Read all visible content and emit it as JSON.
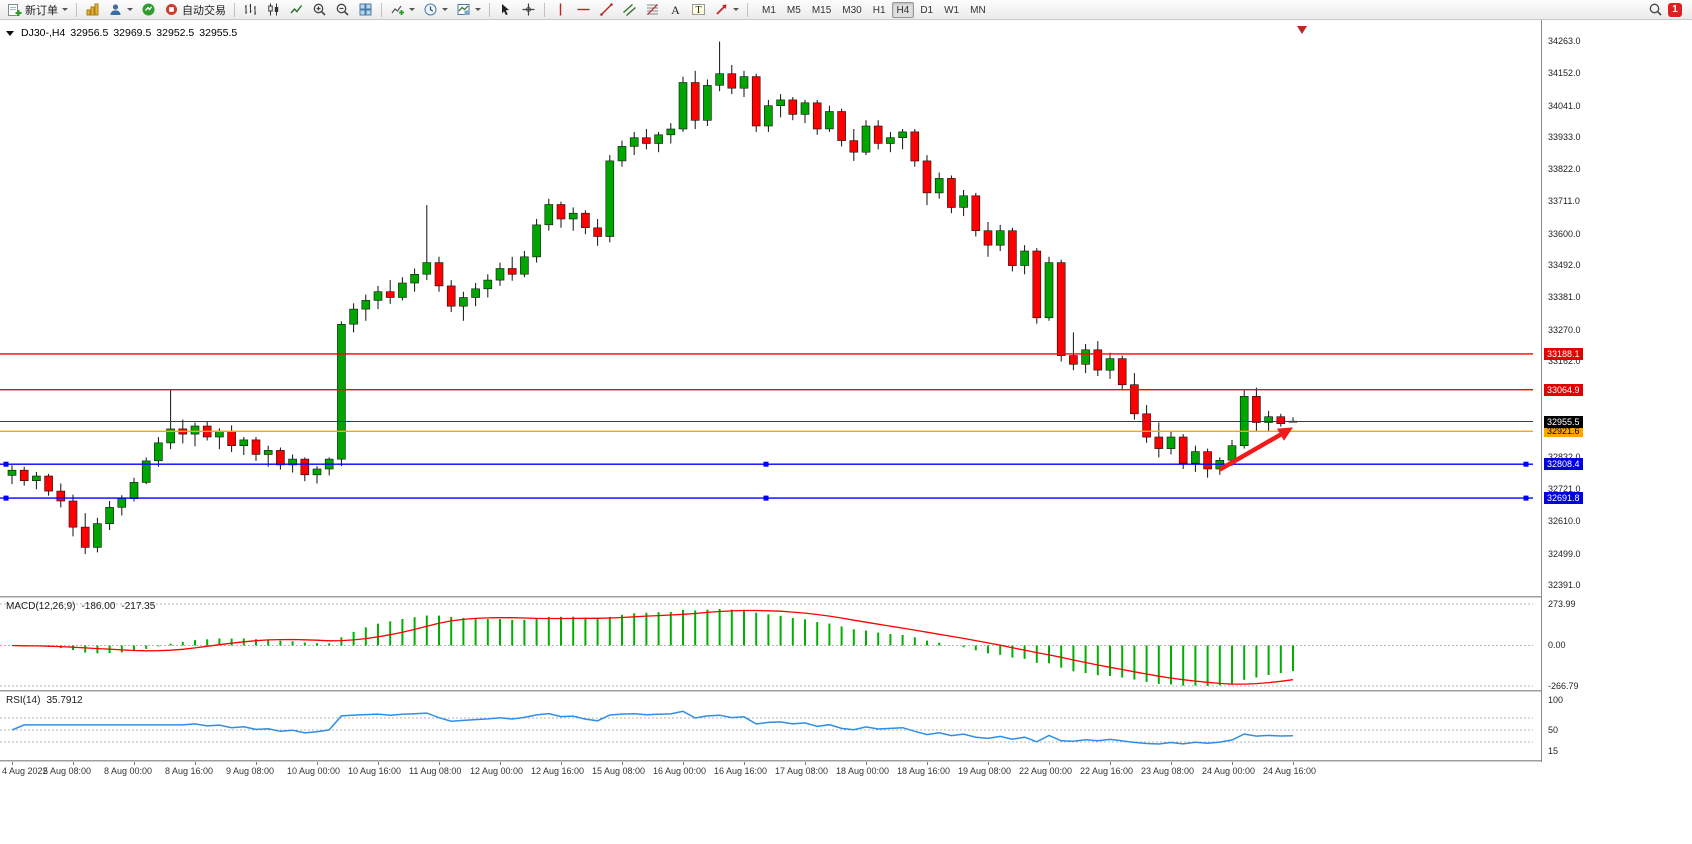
{
  "toolbar": {
    "new_order_label": "新订单",
    "auto_trading_label": "自动交易",
    "timeframes": [
      "M1",
      "M5",
      "M15",
      "M30",
      "H1",
      "H4",
      "D1",
      "W1",
      "MN"
    ],
    "active_timeframe": "H4",
    "notification_count": "1"
  },
  "chart": {
    "symbol_period": "DJ30-,H4",
    "ohlc": {
      "open": "32956.5",
      "high": "32969.5",
      "low": "32952.5",
      "close": "32955.5"
    },
    "price_axis_labels": [
      "34263.0",
      "34152.0",
      "34041.0",
      "33933.0",
      "33822.0",
      "33711.0",
      "33600.0",
      "33492.0",
      "33381.0",
      "33270.0",
      "33162.0",
      "33051.0",
      "32940.0",
      "32832.0",
      "32721.0",
      "32610.0",
      "32499.0",
      "32391.0"
    ],
    "time_axis_labels": [
      "4 Aug 2022",
      "5 Aug 08:00",
      "8 Aug 00:00",
      "8 Aug 16:00",
      "9 Aug 08:00",
      "10 Aug 00:00",
      "10 Aug 16:00",
      "11 Aug 08:00",
      "12 Aug 00:00",
      "12 Aug 16:00",
      "15 Aug 08:00",
      "16 Aug 00:00",
      "16 Aug 16:00",
      "17 Aug 08:00",
      "18 Aug 00:00",
      "18 Aug 16:00",
      "19 Aug 08:00",
      "22 Aug 00:00",
      "22 Aug 16:00",
      "23 Aug 08:00",
      "24 Aug 00:00",
      "24 Aug 16:00"
    ],
    "bid": {
      "value": 32955.5,
      "label": "32955.5",
      "line_color": "#3c3c3c",
      "label_bg": "#000000",
      "label_fg": "#ffffff"
    },
    "levels": [
      {
        "value": 33188.1,
        "label": "33188.1",
        "color": "#FF0000",
        "label_bg": "#E30000",
        "label_fg": "#ffffff",
        "handles": false
      },
      {
        "value": 33064.9,
        "label": "33064.9",
        "color": "#FF0000",
        "label_bg": "#E30000",
        "label_fg": "#ffffff",
        "handles": false
      },
      {
        "value": 32921.6,
        "label": "32921.6",
        "color": "#FFA500",
        "label_bg": "#FFA500",
        "label_fg": "#000000",
        "handles": false
      },
      {
        "value": 32808.4,
        "label": "32808.4",
        "color": "#0000FF",
        "label_bg": "#0000E0",
        "label_fg": "#ffffff",
        "handles": true
      },
      {
        "value": 32691.8,
        "label": "32691.8",
        "color": "#0000FF",
        "label_bg": "#0000E0",
        "label_fg": "#ffffff",
        "handles": true
      }
    ],
    "arrow_annotation": {
      "from_index": 99,
      "from_price": 32790,
      "to_index": 105,
      "to_price": 32935,
      "color": "#F21A1A"
    },
    "colors": {
      "bull": "#00A600",
      "bear": "#FF0000",
      "outline": "#111111",
      "background": "#FFFFFF"
    }
  },
  "chart_data": {
    "type": "candlestick",
    "symbol": "DJ30-",
    "timeframe": "H4",
    "y_range": [
      32355,
      34330
    ],
    "candles_ohlc": [
      [
        32770,
        32805,
        32740,
        32788
      ],
      [
        32788,
        32800,
        32735,
        32752
      ],
      [
        32752,
        32782,
        32722,
        32768
      ],
      [
        32768,
        32775,
        32700,
        32716
      ],
      [
        32716,
        32742,
        32660,
        32682
      ],
      [
        32682,
        32704,
        32560,
        32592
      ],
      [
        32592,
        32640,
        32499,
        32522
      ],
      [
        32522,
        32624,
        32505,
        32604
      ],
      [
        32604,
        32682,
        32582,
        32660
      ],
      [
        32660,
        32702,
        32632,
        32690
      ],
      [
        32690,
        32762,
        32680,
        32746
      ],
      [
        32746,
        32832,
        32740,
        32820
      ],
      [
        32820,
        32902,
        32800,
        32882
      ],
      [
        32882,
        33064,
        32860,
        32930
      ],
      [
        32930,
        32962,
        32880,
        32912
      ],
      [
        32912,
        32952,
        32870,
        32940
      ],
      [
        32940,
        32956,
        32890,
        32902
      ],
      [
        32902,
        32932,
        32860,
        32922
      ],
      [
        32922,
        32942,
        32850,
        32872
      ],
      [
        32872,
        32902,
        32840,
        32892
      ],
      [
        32892,
        32902,
        32820,
        32842
      ],
      [
        32842,
        32872,
        32800,
        32856
      ],
      [
        32856,
        32866,
        32790,
        32806
      ],
      [
        32806,
        32842,
        32780,
        32826
      ],
      [
        32826,
        32832,
        32750,
        32772
      ],
      [
        32772,
        32802,
        32742,
        32792
      ],
      [
        32792,
        32832,
        32770,
        32826
      ],
      [
        32826,
        33300,
        32802,
        33290
      ],
      [
        33290,
        33362,
        33262,
        33342
      ],
      [
        33342,
        33392,
        33302,
        33372
      ],
      [
        33372,
        33422,
        33342,
        33402
      ],
      [
        33402,
        33442,
        33360,
        33382
      ],
      [
        33382,
        33452,
        33372,
        33432
      ],
      [
        33432,
        33482,
        33402,
        33462
      ],
      [
        33462,
        33700,
        33442,
        33502
      ],
      [
        33502,
        33522,
        33402,
        33422
      ],
      [
        33422,
        33442,
        33332,
        33352
      ],
      [
        33352,
        33402,
        33302,
        33382
      ],
      [
        33382,
        33432,
        33352,
        33412
      ],
      [
        33412,
        33462,
        33382,
        33442
      ],
      [
        33442,
        33502,
        33422,
        33482
      ],
      [
        33482,
        33522,
        33440,
        33462
      ],
      [
        33462,
        33542,
        33452,
        33522
      ],
      [
        33522,
        33652,
        33502,
        33632
      ],
      [
        33632,
        33722,
        33612,
        33702
      ],
      [
        33702,
        33712,
        33622,
        33652
      ],
      [
        33652,
        33692,
        33612,
        33672
      ],
      [
        33672,
        33682,
        33600,
        33622
      ],
      [
        33622,
        33652,
        33560,
        33592
      ],
      [
        33592,
        33872,
        33572,
        33852
      ],
      [
        33852,
        33922,
        33832,
        33902
      ],
      [
        33902,
        33952,
        33872,
        33932
      ],
      [
        33932,
        33962,
        33892,
        33912
      ],
      [
        33912,
        33952,
        33882,
        33942
      ],
      [
        33942,
        33982,
        33912,
        33962
      ],
      [
        33962,
        34142,
        33952,
        34122
      ],
      [
        34122,
        34162,
        33962,
        33992
      ],
      [
        33992,
        34132,
        33972,
        34112
      ],
      [
        34112,
        34263,
        34092,
        34152
      ],
      [
        34152,
        34182,
        34082,
        34102
      ],
      [
        34102,
        34162,
        34072,
        34142
      ],
      [
        34142,
        34152,
        33952,
        33972
      ],
      [
        33972,
        34062,
        33952,
        34042
      ],
      [
        34042,
        34082,
        34002,
        34062
      ],
      [
        34062,
        34072,
        33992,
        34012
      ],
      [
        34012,
        34062,
        33982,
        34052
      ],
      [
        34052,
        34062,
        33942,
        33962
      ],
      [
        33962,
        34042,
        33952,
        34022
      ],
      [
        34022,
        34032,
        33902,
        33922
      ],
      [
        33922,
        33962,
        33852,
        33882
      ],
      [
        33882,
        33992,
        33872,
        33972
      ],
      [
        33972,
        33992,
        33892,
        33912
      ],
      [
        33912,
        33952,
        33882,
        33932
      ],
      [
        33932,
        33962,
        33892,
        33952
      ],
      [
        33952,
        33962,
        33832,
        33852
      ],
      [
        33852,
        33872,
        33700,
        33742
      ],
      [
        33742,
        33812,
        33722,
        33792
      ],
      [
        33792,
        33802,
        33672,
        33692
      ],
      [
        33692,
        33752,
        33662,
        33732
      ],
      [
        33732,
        33742,
        33592,
        33612
      ],
      [
        33612,
        33642,
        33522,
        33562
      ],
      [
        33562,
        33632,
        33542,
        33612
      ],
      [
        33612,
        33622,
        33472,
        33492
      ],
      [
        33492,
        33562,
        33462,
        33542
      ],
      [
        33542,
        33552,
        33292,
        33312
      ],
      [
        33312,
        33522,
        33302,
        33502
      ],
      [
        33502,
        33512,
        33162,
        33182
      ],
      [
        33182,
        33262,
        33132,
        33152
      ],
      [
        33152,
        33222,
        33122,
        33202
      ],
      [
        33202,
        33232,
        33112,
        33132
      ],
      [
        33132,
        33192,
        33102,
        33172
      ],
      [
        33172,
        33182,
        33062,
        33082
      ],
      [
        33082,
        33122,
        32962,
        32982
      ],
      [
        32982,
        33012,
        32882,
        32902
      ],
      [
        32902,
        32952,
        32832,
        32862
      ],
      [
        32862,
        32922,
        32842,
        32902
      ],
      [
        32902,
        32912,
        32792,
        32812
      ],
      [
        32812,
        32872,
        32782,
        32852
      ],
      [
        32852,
        32862,
        32762,
        32792
      ],
      [
        32792,
        32832,
        32772,
        32822
      ],
      [
        32822,
        32892,
        32802,
        32872
      ],
      [
        32872,
        33062,
        32862,
        33042
      ],
      [
        33042,
        33072,
        32922,
        32952
      ],
      [
        32952,
        32992,
        32922,
        32972
      ],
      [
        32972,
        32982,
        32938,
        32948
      ],
      [
        32956.5,
        32969.5,
        32952.5,
        32955.5
      ]
    ],
    "indicators": [
      {
        "type": "macd",
        "label": "MACD(12,26,9)",
        "params": [
          12,
          26,
          9
        ],
        "main_value": "-186.00",
        "signal_value": "-217.35",
        "scale_labels": [
          "273.99",
          "0.00",
          "-266.79"
        ],
        "scale_values": [
          273.99,
          0,
          -266.79
        ],
        "histogram_color": "#00B000",
        "signal_color": "#FF0000"
      },
      {
        "type": "rsi",
        "label": "RSI(14)",
        "period": 14,
        "value": "35.7912",
        "scale_labels": [
          "100",
          "50",
          "15"
        ],
        "scale_values": [
          100,
          50,
          15
        ],
        "levels": [
          70,
          50,
          30
        ],
        "line_color": "#2E8FE8"
      }
    ]
  }
}
